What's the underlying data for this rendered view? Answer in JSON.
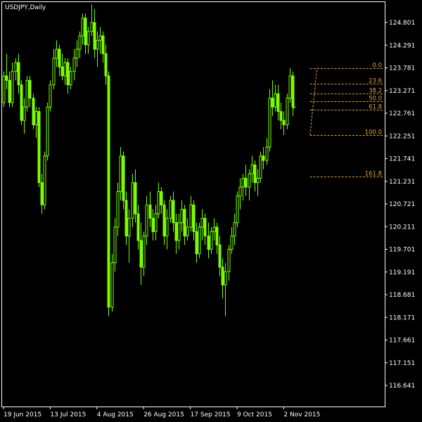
{
  "window": {
    "symbol_label": "USDJPY,Daily"
  },
  "colors": {
    "background": "#000000",
    "frame": "#ffffff",
    "candle": "#7CFC00",
    "fib": "#e0a040",
    "text": "#ffffff"
  },
  "chart_data": {
    "type": "candlestick",
    "symbol": "USDJPY",
    "timeframe": "Daily",
    "ylim": [
      116.2,
      125.3
    ],
    "y_ticks": [
      "124.801",
      "124.291",
      "123.781",
      "123.271",
      "122.761",
      "122.251",
      "121.741",
      "121.231",
      "120.721",
      "120.211",
      "119.701",
      "119.191",
      "118.681",
      "118.171",
      "117.661",
      "117.151",
      "116.641"
    ],
    "x_tick_labels": [
      "19 Jun 2015",
      "13 Jul 2015",
      "4 Aug 2015",
      "26 Aug 2015",
      "17 Sep 2015",
      "9 Oct 2015",
      "2 Nov 2015"
    ],
    "x_tick_bar_index": [
      0,
      16,
      32,
      48,
      64,
      80,
      96
    ],
    "grid": false,
    "fibonacci": {
      "from_bar_index": 105,
      "high": 123.78,
      "low": 122.27,
      "levels": [
        {
          "label": "0.0",
          "ratio": 0.0
        },
        {
          "label": "23.6",
          "ratio": 0.236
        },
        {
          "label": "38.2",
          "ratio": 0.382
        },
        {
          "label": "50.0",
          "ratio": 0.5
        },
        {
          "label": "61.8",
          "ratio": 0.618
        },
        {
          "label": "100.0",
          "ratio": 1.0
        },
        {
          "label": "161.8",
          "ratio": 1.618
        }
      ]
    },
    "ohlc": [
      [
        123.0,
        123.7,
        122.9,
        123.6
      ],
      [
        123.6,
        124.1,
        123.3,
        123.5
      ],
      [
        123.5,
        123.7,
        122.9,
        123.0
      ],
      [
        123.0,
        123.9,
        122.9,
        123.7
      ],
      [
        123.7,
        124.0,
        123.5,
        123.9
      ],
      [
        123.9,
        124.1,
        123.2,
        123.4
      ],
      [
        123.4,
        123.5,
        122.5,
        122.6
      ],
      [
        122.6,
        123.1,
        122.3,
        122.9
      ],
      [
        122.9,
        123.6,
        122.8,
        123.5
      ],
      [
        123.5,
        123.6,
        122.9,
        123.1
      ],
      [
        123.1,
        123.2,
        122.4,
        122.5
      ],
      [
        122.5,
        122.9,
        122.2,
        122.8
      ],
      [
        122.8,
        122.9,
        121.1,
        121.2
      ],
      [
        121.2,
        121.4,
        120.5,
        120.7
      ],
      [
        120.7,
        121.9,
        120.6,
        121.8
      ],
      [
        121.8,
        123.0,
        121.7,
        122.9
      ],
      [
        122.9,
        123.5,
        122.8,
        123.4
      ],
      [
        123.4,
        124.2,
        123.3,
        124.0
      ],
      [
        124.0,
        124.4,
        123.8,
        124.2
      ],
      [
        124.2,
        124.3,
        123.6,
        123.8
      ],
      [
        123.8,
        124.1,
        123.5,
        123.6
      ],
      [
        123.6,
        124.0,
        123.4,
        123.9
      ],
      [
        123.9,
        124.0,
        123.2,
        123.4
      ],
      [
        123.4,
        123.8,
        123.3,
        123.7
      ],
      [
        123.7,
        124.2,
        123.5,
        124.0
      ],
      [
        124.0,
        124.4,
        123.8,
        124.2
      ],
      [
        124.2,
        124.6,
        124.0,
        124.5
      ],
      [
        124.5,
        125.0,
        124.3,
        124.9
      ],
      [
        124.9,
        125.0,
        124.1,
        124.3
      ],
      [
        124.3,
        124.7,
        124.1,
        124.6
      ],
      [
        124.6,
        125.2,
        124.5,
        124.8
      ],
      [
        124.8,
        125.1,
        124.0,
        124.2
      ],
      [
        124.2,
        124.6,
        123.8,
        124.4
      ],
      [
        124.4,
        124.7,
        124.1,
        124.5
      ],
      [
        124.5,
        124.6,
        123.9,
        124.1
      ],
      [
        124.1,
        124.3,
        123.4,
        123.6
      ],
      [
        123.6,
        123.7,
        118.2,
        118.4
      ],
      [
        118.4,
        119.6,
        118.3,
        119.4
      ],
      [
        119.4,
        120.4,
        119.2,
        120.2
      ],
      [
        120.2,
        121.2,
        120.0,
        121.0
      ],
      [
        121.0,
        122.0,
        120.8,
        121.8
      ],
      [
        121.8,
        121.9,
        120.6,
        120.8
      ],
      [
        120.8,
        121.0,
        119.8,
        120.0
      ],
      [
        120.0,
        120.6,
        119.4,
        120.4
      ],
      [
        120.4,
        121.4,
        120.2,
        121.2
      ],
      [
        121.2,
        121.5,
        120.3,
        120.5
      ],
      [
        120.5,
        120.7,
        119.7,
        119.9
      ],
      [
        119.9,
        120.3,
        118.9,
        119.3
      ],
      [
        119.3,
        120.1,
        119.1,
        120.0
      ],
      [
        120.0,
        120.9,
        119.8,
        120.7
      ],
      [
        120.7,
        121.0,
        120.2,
        120.4
      ],
      [
        120.4,
        120.6,
        119.9,
        120.1
      ],
      [
        120.1,
        120.7,
        119.9,
        120.5
      ],
      [
        120.5,
        121.2,
        120.4,
        121.0
      ],
      [
        121.0,
        121.1,
        120.5,
        120.7
      ],
      [
        120.7,
        120.8,
        119.8,
        120.0
      ],
      [
        120.0,
        120.6,
        119.7,
        120.4
      ],
      [
        120.4,
        120.9,
        120.3,
        120.8
      ],
      [
        120.8,
        121.0,
        120.1,
        120.3
      ],
      [
        120.3,
        120.5,
        119.6,
        119.9
      ],
      [
        119.9,
        120.5,
        119.7,
        120.3
      ],
      [
        120.3,
        120.8,
        120.1,
        120.6
      ],
      [
        120.6,
        120.7,
        119.8,
        120.0
      ],
      [
        120.0,
        120.4,
        119.9,
        120.2
      ],
      [
        120.2,
        120.9,
        120.1,
        120.7
      ],
      [
        120.7,
        120.8,
        119.9,
        120.1
      ],
      [
        120.1,
        120.3,
        119.4,
        119.6
      ],
      [
        119.6,
        120.3,
        119.5,
        120.2
      ],
      [
        120.2,
        120.6,
        119.9,
        120.4
      ],
      [
        120.4,
        120.5,
        119.8,
        120.0
      ],
      [
        120.0,
        120.3,
        119.5,
        119.7
      ],
      [
        119.7,
        120.2,
        119.6,
        120.1
      ],
      [
        120.1,
        120.4,
        119.9,
        120.2
      ],
      [
        120.2,
        120.3,
        119.6,
        119.8
      ],
      [
        119.8,
        120.0,
        119.1,
        119.3
      ],
      [
        119.3,
        119.5,
        118.6,
        118.9
      ],
      [
        118.9,
        119.4,
        118.2,
        119.2
      ],
      [
        119.2,
        119.8,
        119.0,
        119.7
      ],
      [
        119.7,
        120.2,
        119.6,
        120.0
      ],
      [
        120.0,
        120.5,
        119.8,
        120.3
      ],
      [
        120.3,
        121.0,
        120.2,
        120.9
      ],
      [
        120.9,
        121.3,
        120.6,
        121.1
      ],
      [
        121.1,
        121.4,
        120.8,
        121.3
      ],
      [
        121.3,
        121.6,
        120.9,
        121.1
      ],
      [
        121.1,
        121.5,
        120.8,
        121.4
      ],
      [
        121.4,
        121.8,
        121.2,
        121.6
      ],
      [
        121.6,
        121.7,
        121.0,
        121.2
      ],
      [
        121.2,
        121.5,
        120.9,
        121.3
      ],
      [
        121.3,
        121.9,
        121.2,
        121.8
      ],
      [
        121.8,
        122.0,
        121.5,
        121.7
      ],
      [
        121.7,
        122.2,
        121.6,
        122.0
      ],
      [
        122.0,
        123.3,
        121.9,
        123.1
      ],
      [
        123.1,
        123.5,
        122.7,
        122.9
      ],
      [
        122.9,
        123.4,
        122.8,
        123.2
      ],
      [
        123.2,
        123.4,
        122.6,
        122.8
      ],
      [
        122.8,
        123.0,
        122.4,
        122.6
      ],
      [
        122.6,
        122.8,
        122.27,
        122.5
      ],
      [
        122.5,
        123.2,
        122.4,
        123.1
      ],
      [
        123.1,
        123.78,
        123.0,
        123.6
      ],
      [
        123.6,
        123.7,
        122.7,
        122.9
      ]
    ]
  }
}
